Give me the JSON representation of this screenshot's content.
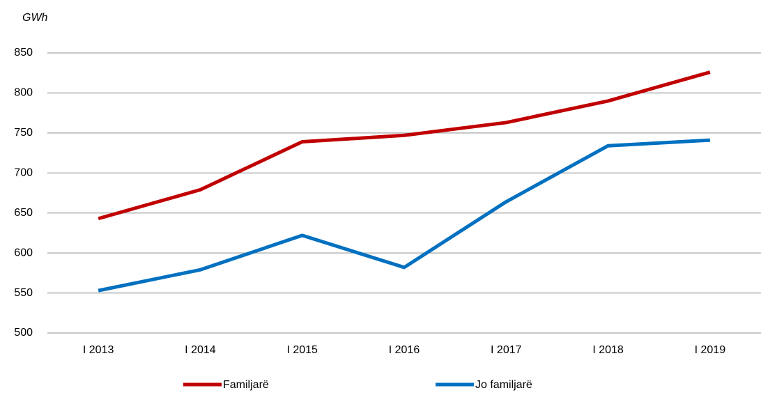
{
  "chart_data": {
    "type": "line",
    "y_axis_label": "GWh",
    "categories": [
      "I 2013",
      "I 2014",
      "I 2015",
      "I 2016",
      "I 2017",
      "I 2018",
      "I 2019"
    ],
    "series": [
      {
        "name": "Familjarë",
        "color": "#c00000",
        "values": [
          643,
          679,
          739,
          747,
          763,
          790,
          826
        ]
      },
      {
        "name": "Jo familjarë",
        "color": "#0070c0",
        "values": [
          553,
          579,
          622,
          582,
          664,
          734,
          741
        ]
      }
    ],
    "ylim": [
      500,
      850
    ],
    "yticks": [
      500,
      550,
      600,
      650,
      700,
      750,
      800,
      850
    ],
    "grid": true,
    "legend": "bottom"
  }
}
